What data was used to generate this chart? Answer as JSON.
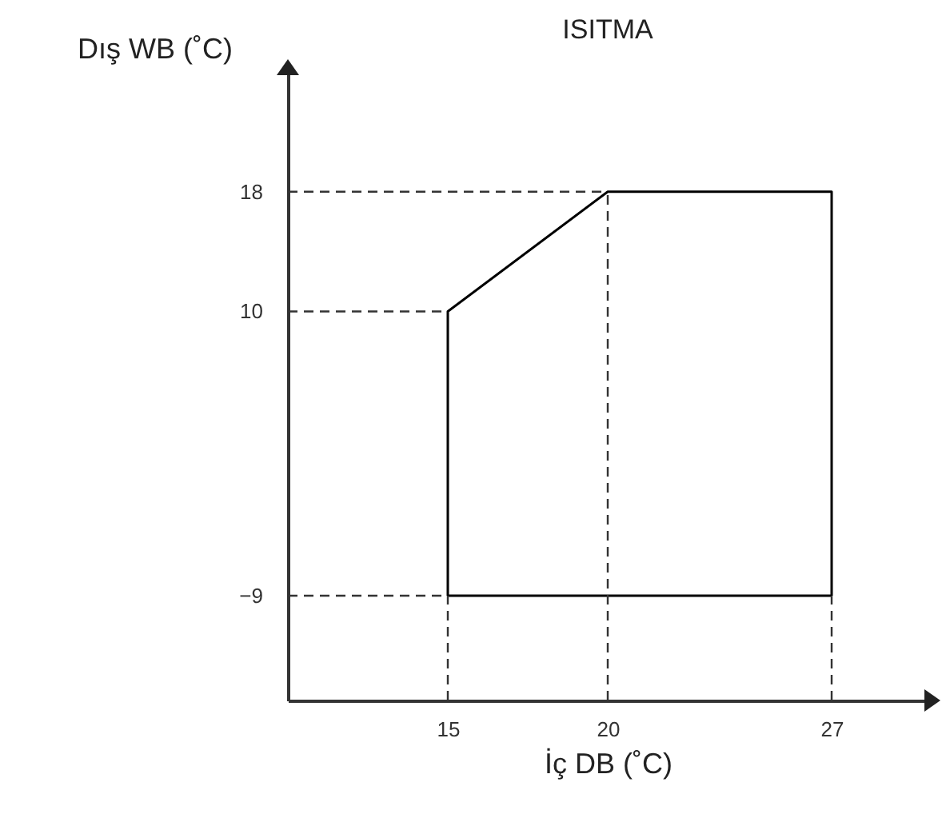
{
  "chart_data": {
    "type": "line",
    "title": "ISITMA",
    "xlabel": "İç DB (˚C)",
    "ylabel": "Dış WB (˚C)",
    "x": [
      15,
      15,
      20,
      27,
      27
    ],
    "series": [
      {
        "color": "#000000",
        "values": [
          -9,
          10,
          18,
          18,
          -9
        ]
      },
      {
        "color": "#000000",
        "x": [
          15,
          27
        ],
        "values": [
          -9,
          -9
        ]
      }
    ],
    "xlim": [
      10,
      30
    ],
    "ylim": [
      -16,
      26
    ],
    "xticks": [
      15,
      20,
      27
    ],
    "yticks": [
      -9,
      10,
      18
    ],
    "ref_lines": [
      {
        "axis": "x",
        "value": 15,
        "color": "#333333",
        "line_style": "dashed"
      },
      {
        "axis": "x",
        "value": 20,
        "color": "#333333",
        "line_style": "dashed"
      },
      {
        "axis": "x",
        "value": 27,
        "color": "#333333",
        "line_style": "dashed"
      },
      {
        "axis": "y",
        "value": 18,
        "color": "#333333",
        "line_style": "dashed"
      },
      {
        "axis": "y",
        "value": 10,
        "color": "#333333",
        "line_style": "dashed"
      },
      {
        "axis": "y",
        "value": -9,
        "color": "#333333",
        "line_style": "dashed"
      }
    ],
    "grid": false,
    "marker": "none",
    "line_style": "solid"
  }
}
